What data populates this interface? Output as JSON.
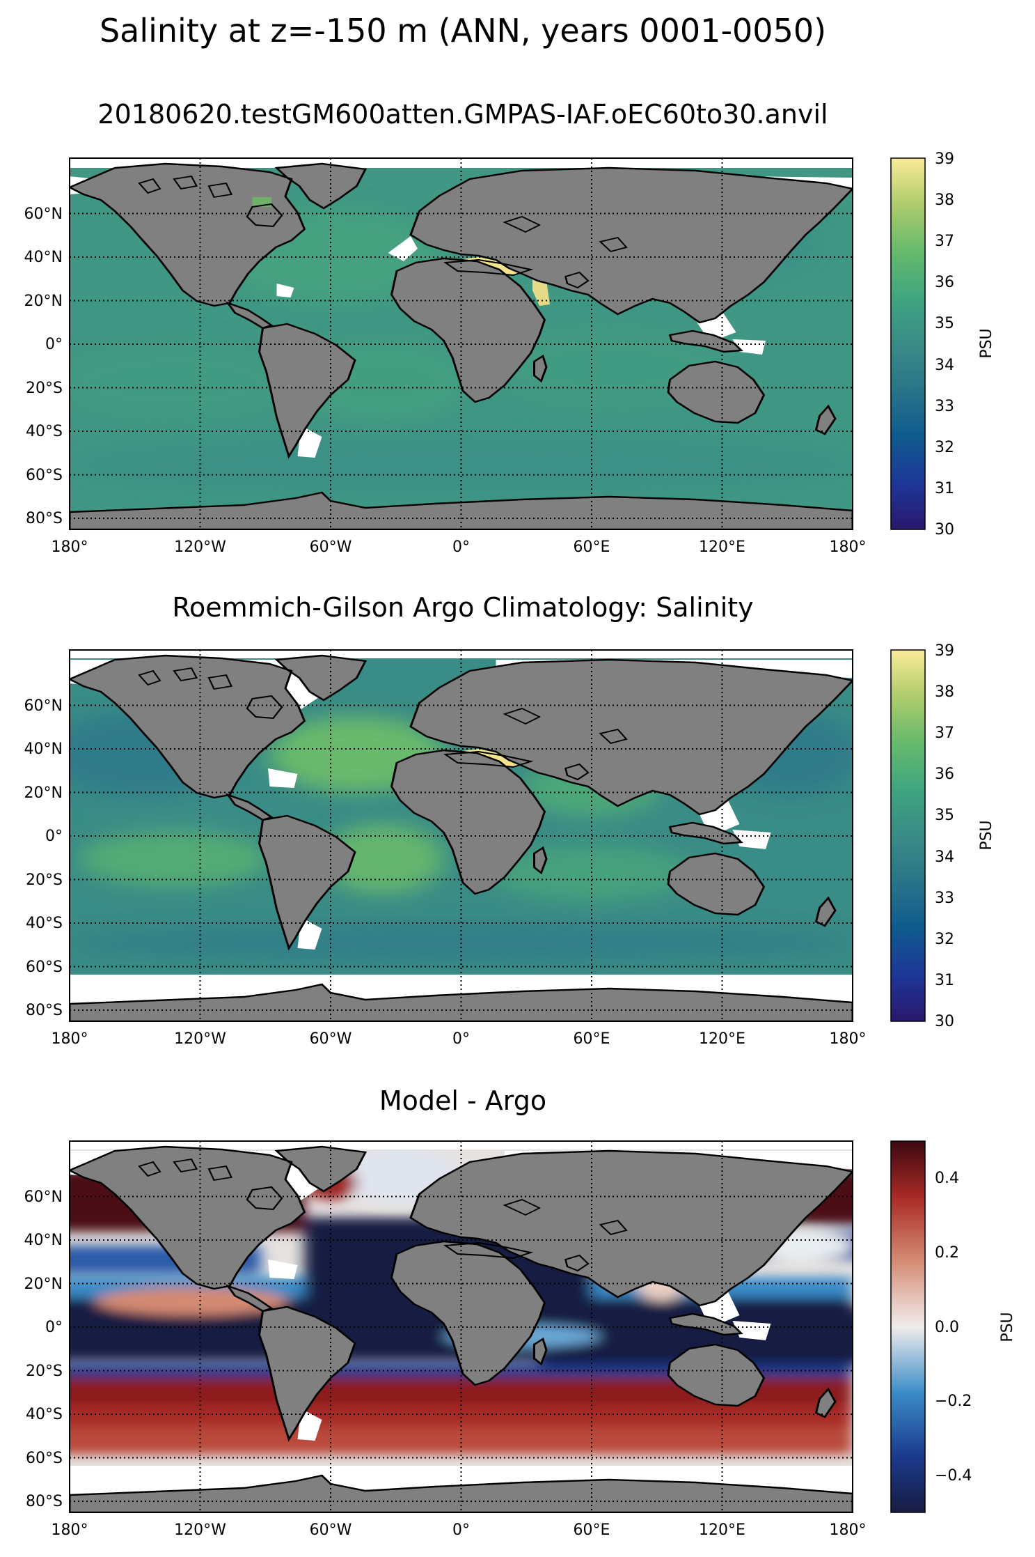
{
  "figure": {
    "suptitle": "Salinity at z=-150 m (ANN, years 0001-0050)"
  },
  "axes": {
    "lon_ticks": [
      "180°",
      "120°W",
      "60°W",
      "0°",
      "60°E",
      "120°E",
      "180°"
    ],
    "lat_ticks": [
      "60°N",
      "40°N",
      "20°N",
      "0°",
      "20°S",
      "40°S",
      "60°S",
      "80°S"
    ]
  },
  "colors": {
    "land": "#808080",
    "missing": "#ffffff",
    "coast": "#000000"
  },
  "panels": [
    {
      "title": "20180620.testGM600atten.GMPAS-IAF.oEC60to30.anvil",
      "colormap": "haline",
      "colorbar": {
        "label": "PSU",
        "ticks": [
          "39",
          "38",
          "37",
          "36",
          "35",
          "34",
          "33",
          "32",
          "31",
          "30"
        ],
        "range": [
          30,
          39
        ]
      },
      "ocean_base_color": "#3f9784"
    },
    {
      "title": "Roemmich-Gilson Argo Climatology: Salinity",
      "colormap": "haline",
      "colorbar": {
        "label": "PSU",
        "ticks": [
          "39",
          "38",
          "37",
          "36",
          "35",
          "34",
          "33",
          "32",
          "31",
          "30"
        ],
        "range": [
          30,
          39
        ]
      },
      "ocean_base_color": "#3a8c86"
    },
    {
      "title": "Model - Argo",
      "colormap": "balance",
      "colorbar": {
        "label": "PSU",
        "ticks": [
          "0.4",
          "0.2",
          "0.0",
          "−0.2",
          "−0.4"
        ],
        "range": [
          -0.5,
          0.5
        ]
      },
      "ocean_base_color": "#e6e2e0"
    }
  ]
}
